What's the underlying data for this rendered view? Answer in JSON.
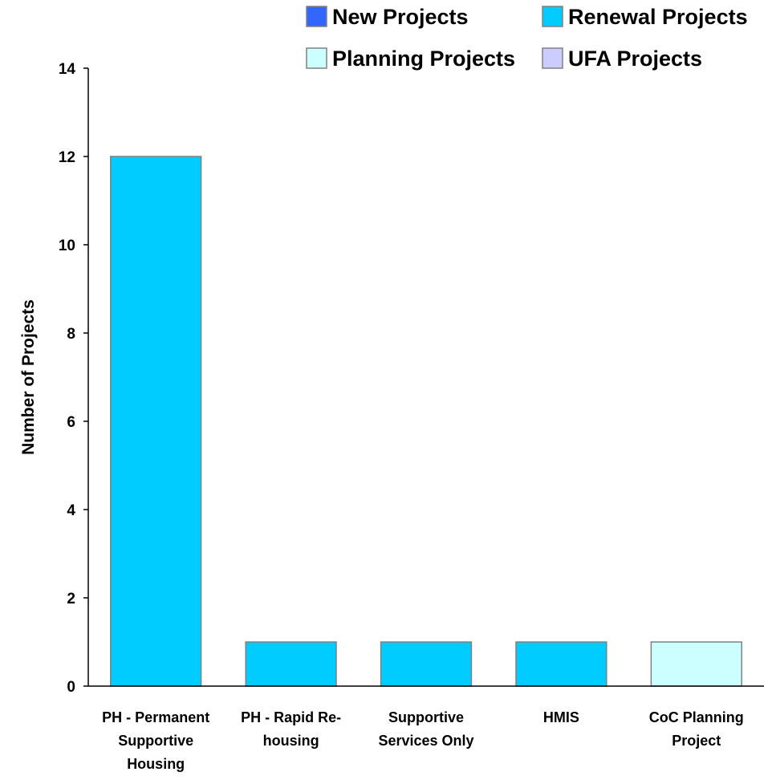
{
  "chart_data": {
    "type": "bar",
    "stacked": true,
    "categories": [
      [
        "PH - Permanent",
        "Supportive",
        "Housing"
      ],
      [
        "PH - Rapid Re-",
        "housing"
      ],
      [
        "Supportive",
        "Services Only"
      ],
      [
        "HMIS"
      ],
      [
        "CoC Planning",
        "Project"
      ]
    ],
    "series": [
      {
        "name": "New Projects",
        "color": "#3366ff",
        "values": [
          0,
          0,
          0,
          0,
          0
        ]
      },
      {
        "name": "Renewal Projects",
        "color": "#00ccff",
        "values": [
          12,
          1,
          1,
          1,
          0
        ]
      },
      {
        "name": "Planning Projects",
        "color": "#ccffff",
        "values": [
          0,
          0,
          0,
          0,
          1
        ]
      },
      {
        "name": "UFA Projects",
        "color": "#ccccff",
        "values": [
          0,
          0,
          0,
          0,
          0
        ]
      }
    ],
    "ylabel": "Number of Projects",
    "xlabel": "",
    "ylim": [
      0,
      14
    ],
    "yticks": [
      0,
      2,
      4,
      6,
      8,
      10,
      12,
      14
    ],
    "grid": false,
    "legend_position": "top"
  }
}
